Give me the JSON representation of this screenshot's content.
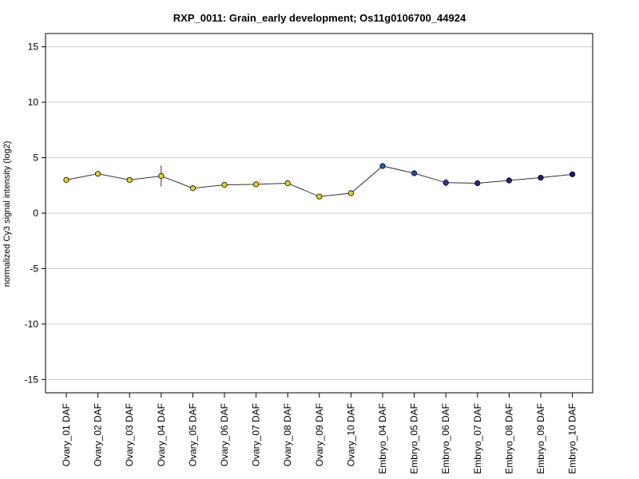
{
  "chart_data": {
    "type": "line",
    "title": "RXP_0011: Grain_early development; Os11g0106700_44924",
    "xlabel": "",
    "ylabel": "normalized Cy3 signal intensity (log2)",
    "ylim": [
      -16.2,
      16.2
    ],
    "yticks": [
      -15,
      -10,
      -5,
      0,
      5,
      10,
      15
    ],
    "grid": true,
    "legend": "none",
    "categories": [
      "Ovary_01 DAF",
      "Ovary_02 DAF",
      "Ovary_03 DAF",
      "Ovary_04 DAF",
      "Ovary_05 DAF",
      "Ovary_06 DAF",
      "Ovary_07 DAF",
      "Ovary_08 DAF",
      "Ovary_09 DAF",
      "Ovary_10 DAF",
      "Embryo_04 DAF",
      "Embryo_05 DAF",
      "Embryo_06 DAF",
      "Embryo_07 DAF",
      "Embryo_08 DAF",
      "Embryo_09 DAF",
      "Embryo_10 DAF"
    ],
    "values": [
      3.0,
      3.55,
      3.0,
      3.35,
      2.25,
      2.55,
      2.6,
      2.7,
      1.5,
      1.8,
      4.25,
      3.6,
      2.75,
      2.7,
      2.95,
      3.2,
      3.5
    ],
    "errors": [
      0.1,
      0.1,
      0.1,
      0.95,
      0.15,
      0.1,
      0.15,
      0.2,
      0.1,
      0.1,
      0.1,
      0.15,
      0.35,
      0.1,
      0.1,
      0.25,
      0.1
    ],
    "point_colors": [
      "#f2d20c",
      "#f2d20c",
      "#f2d20c",
      "#f2d20c",
      "#f2d20c",
      "#f2d20c",
      "#f2d20c",
      "#f2d20c",
      "#f2d20c",
      "#f2d20c",
      "#1f5ec4",
      "#1c4fb0",
      "#1a3fa0",
      "#172f98",
      "#15258f",
      "#122088",
      "#101a80"
    ],
    "line_color": "#333333",
    "grid_color": "#cccccc"
  }
}
